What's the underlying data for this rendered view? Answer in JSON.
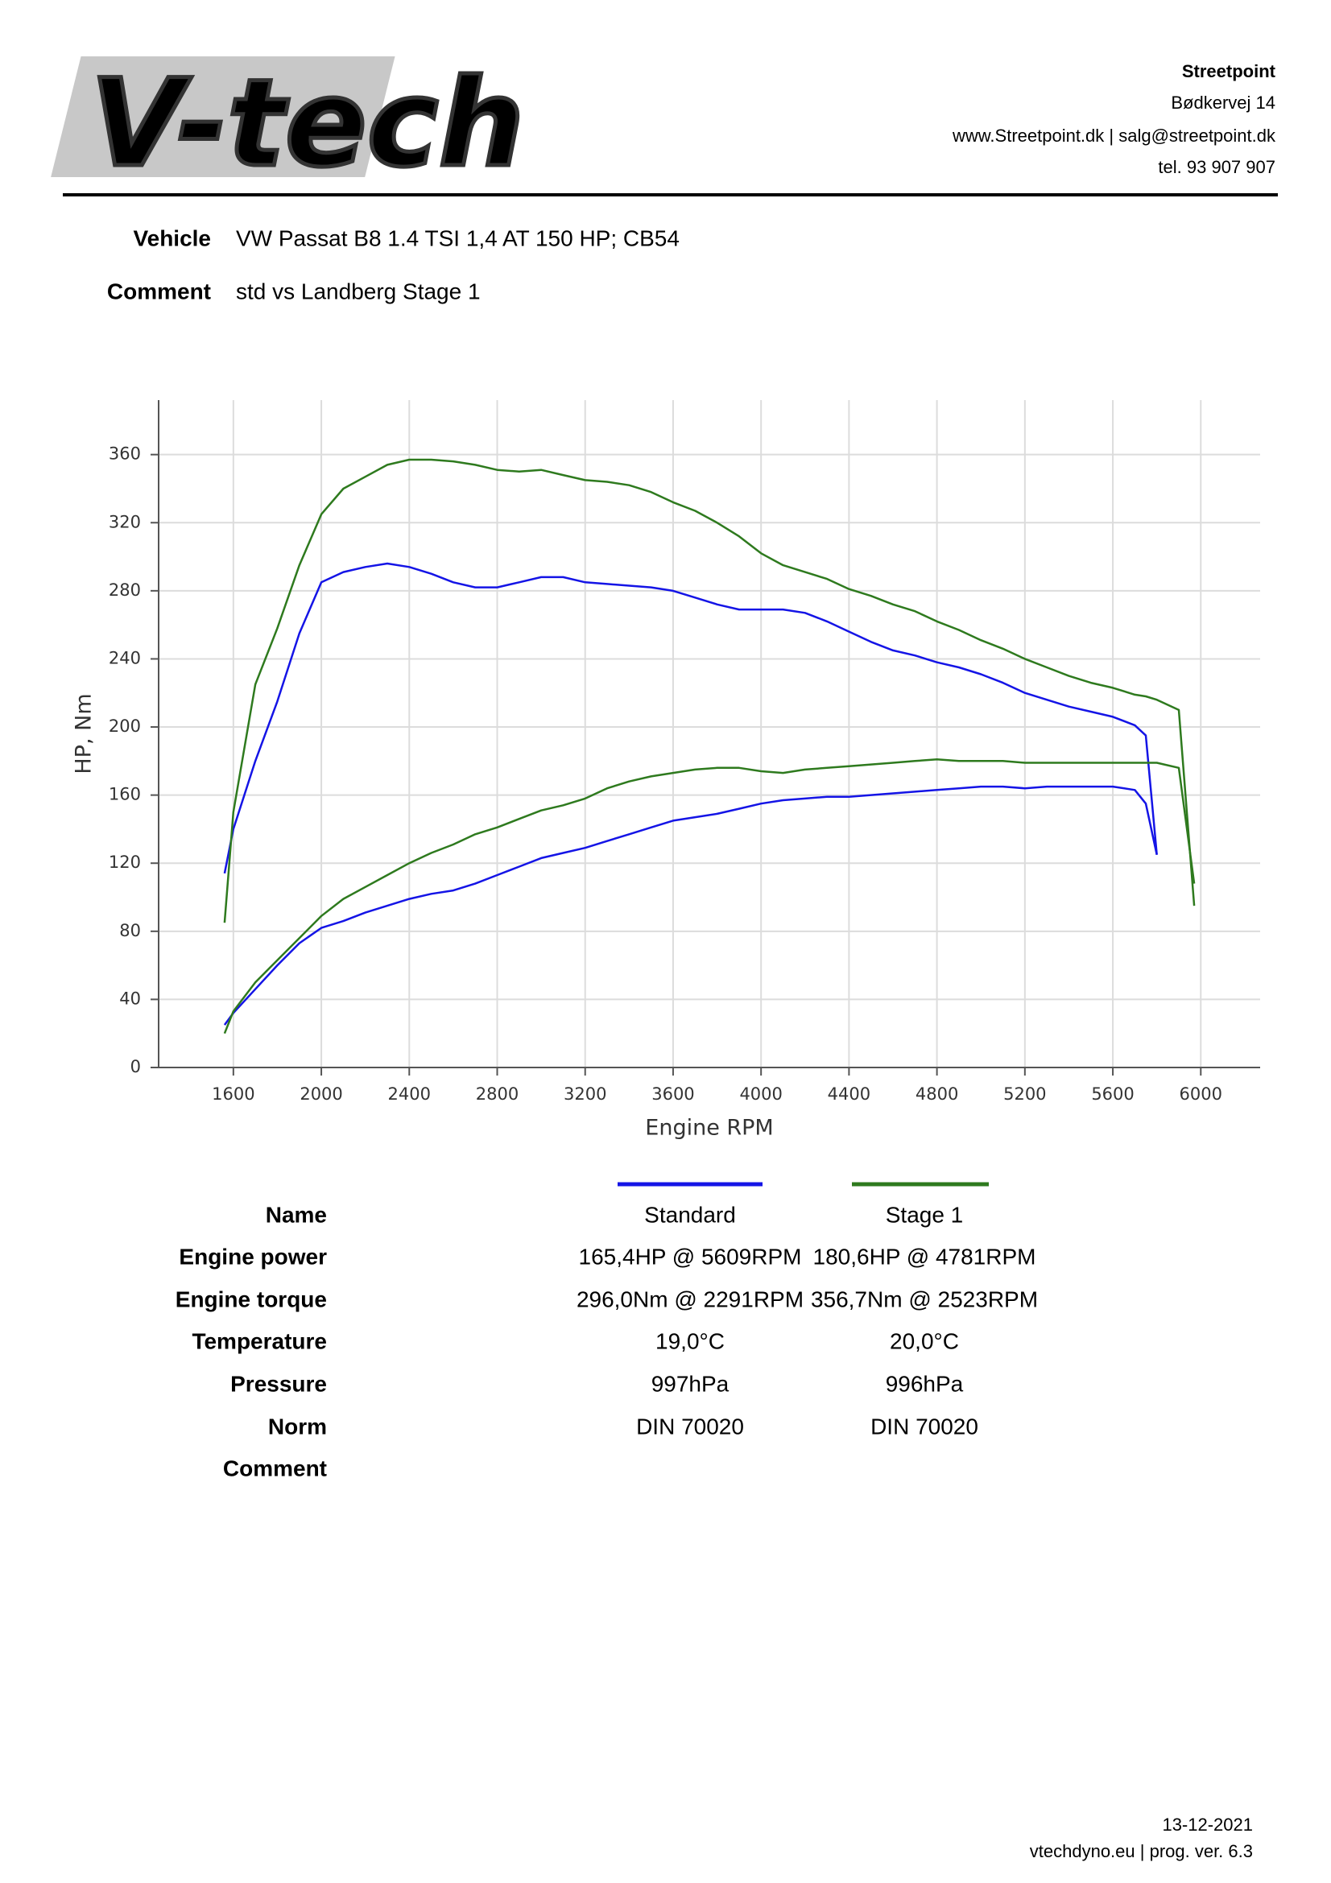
{
  "header": {
    "logo_v": "V",
    "logo_rest": "-tech",
    "company": "Streetpoint",
    "address": "Bødkervej 14",
    "web": "www.Streetpoint.dk | salg@streetpoint.dk",
    "phone": "tel. 93 907 907"
  },
  "vehicle": {
    "label": "Vehicle",
    "value": "VW Passat B8 1.4 TSI 1,4 AT 150 HP; CB54"
  },
  "comment": {
    "label": "Comment",
    "value": "std vs Landberg Stage 1"
  },
  "chart_data": {
    "type": "line",
    "xlabel": "Engine RPM",
    "ylabel": "HP, Nm",
    "x": [
      1560,
      1600,
      1700,
      1800,
      1900,
      2000,
      2100,
      2200,
      2300,
      2400,
      2500,
      2600,
      2700,
      2800,
      2900,
      3000,
      3100,
      3200,
      3300,
      3400,
      3500,
      3600,
      3700,
      3800,
      3900,
      4000,
      4100,
      4200,
      4300,
      4400,
      4500,
      4600,
      4700,
      4800,
      4900,
      5000,
      5100,
      5200,
      5300,
      5400,
      5500,
      5600,
      5700,
      5750,
      5800,
      5900,
      5970
    ],
    "series": [
      {
        "color": "#1414e6",
        "values": [
          114,
          140,
          180,
          215,
          255,
          285,
          291,
          294,
          296,
          294,
          290,
          285,
          282,
          282,
          285,
          288,
          288,
          285,
          284,
          283,
          282,
          280,
          276,
          272,
          269,
          269,
          269,
          267,
          262,
          256,
          250,
          245,
          242,
          238,
          235,
          231,
          226,
          220,
          216,
          212,
          209,
          206,
          201,
          195,
          125,
          null,
          null
        ]
      },
      {
        "color": "#1414e6",
        "values": [
          25,
          32,
          46,
          60,
          73,
          82,
          86,
          91,
          95,
          99,
          102,
          104,
          108,
          113,
          118,
          123,
          126,
          129,
          133,
          137,
          141,
          145,
          147,
          149,
          152,
          155,
          157,
          158,
          159,
          159,
          160,
          161,
          162,
          163,
          164,
          165,
          165,
          164,
          165,
          165,
          165,
          165,
          163,
          155,
          125,
          null,
          null
        ]
      },
      {
        "color": "#2e7a1e",
        "values": [
          85,
          150,
          225,
          258,
          295,
          325,
          340,
          347,
          354,
          357,
          357,
          356,
          354,
          351,
          350,
          351,
          348,
          345,
          344,
          342,
          338,
          332,
          327,
          320,
          312,
          302,
          295,
          291,
          287,
          281,
          277,
          272,
          268,
          262,
          257,
          251,
          246,
          240,
          235,
          230,
          226,
          223,
          219,
          218,
          216,
          210,
          95
        ]
      },
      {
        "color": "#2e7a1e",
        "values": [
          20,
          33,
          50,
          63,
          76,
          89,
          99,
          106,
          113,
          120,
          126,
          131,
          137,
          141,
          146,
          151,
          154,
          158,
          164,
          168,
          171,
          173,
          175,
          176,
          176,
          174,
          173,
          175,
          176,
          177,
          178,
          179,
          180,
          181,
          180,
          180,
          180,
          179,
          179,
          179,
          179,
          179,
          179,
          179,
          179,
          176,
          108
        ]
      }
    ],
    "xlim": [
      1260,
      6270
    ],
    "ylim": [
      0,
      392
    ],
    "xticks": [
      1600,
      2000,
      2400,
      2800,
      3200,
      3600,
      4000,
      4400,
      4800,
      5200,
      5600,
      6000
    ],
    "yticks": [
      0,
      40,
      80,
      120,
      160,
      200,
      240,
      280,
      320,
      360
    ],
    "grid": true
  },
  "table": {
    "rows": [
      [
        "Name",
        "Standard",
        "Stage 1"
      ],
      [
        "Engine power",
        "165,4HP @ 5609RPM",
        "180,6HP @ 4781RPM"
      ],
      [
        "Engine torque",
        "296,0Nm @ 2291RPM",
        "356,7Nm @ 2523RPM"
      ],
      [
        "Temperature",
        "19,0°C",
        "20,0°C"
      ],
      [
        "Pressure",
        "997hPa",
        "996hPa"
      ],
      [
        "Norm",
        "DIN 70020",
        "DIN 70020"
      ],
      [
        "Comment"
      ]
    ]
  },
  "footer": {
    "date": "13-12-2021",
    "version": "vtechdyno.eu | prog. ver. 6.3"
  }
}
